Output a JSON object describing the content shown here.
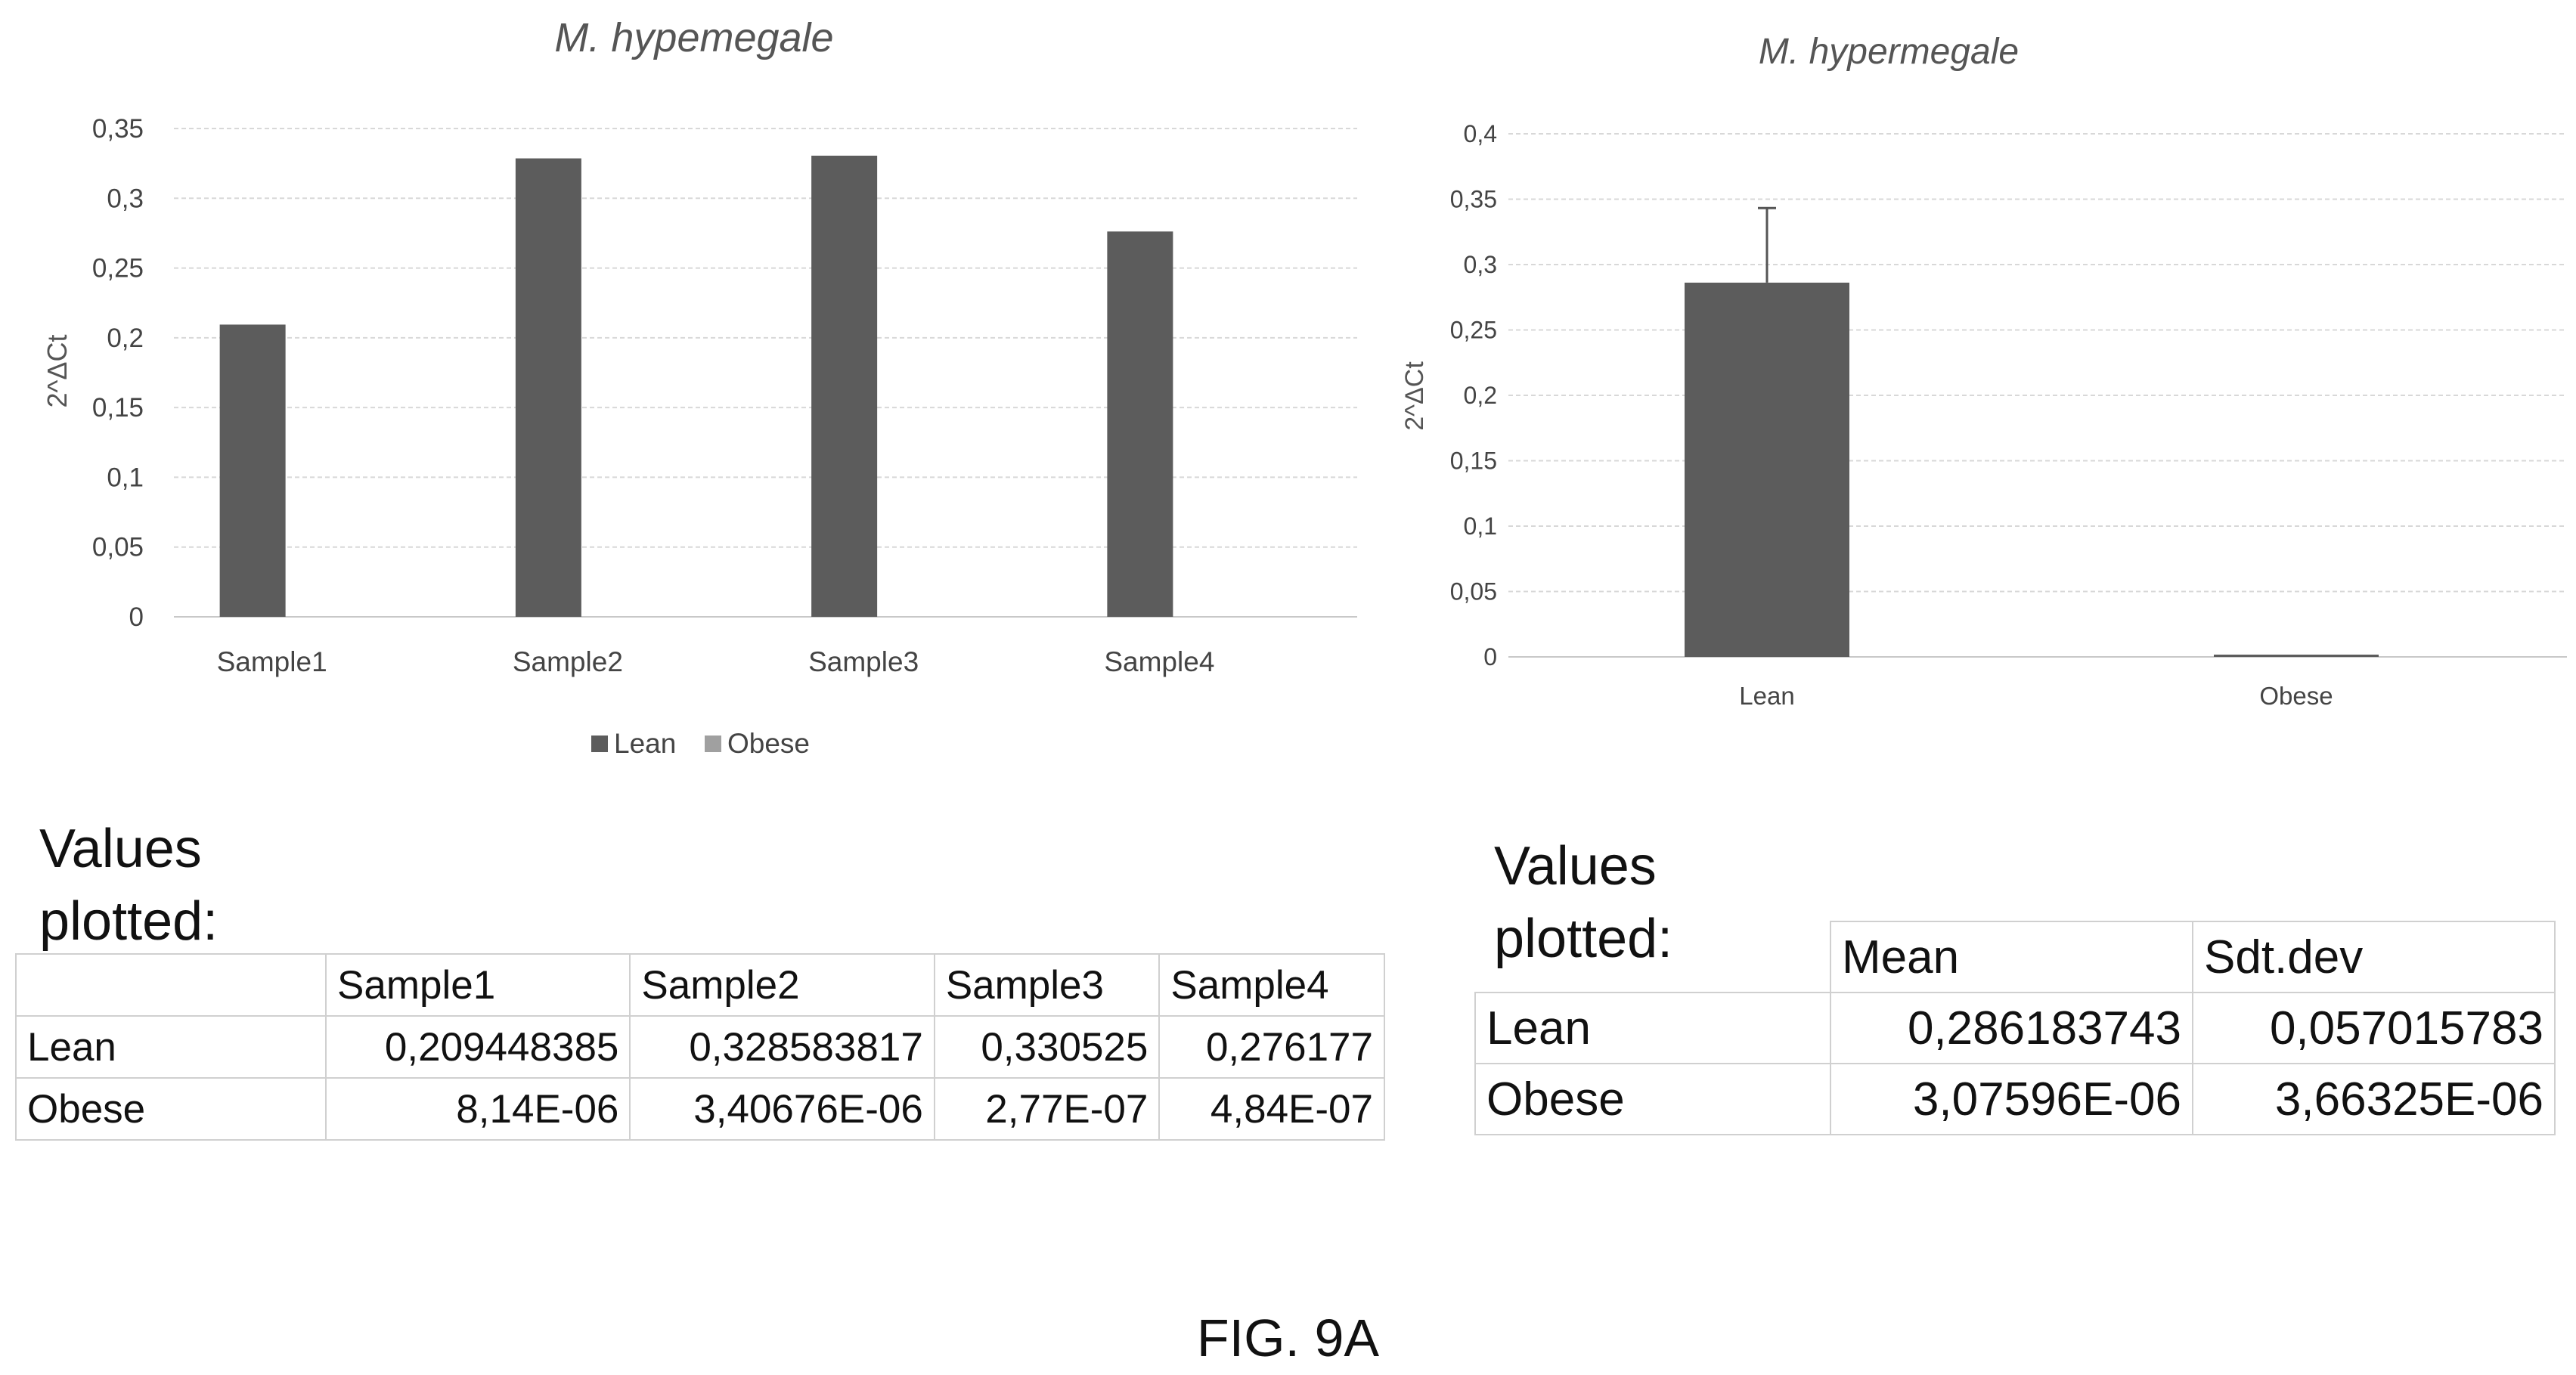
{
  "chart_data": [
    {
      "type": "bar",
      "title": "M. hypemegale",
      "ylabel": "2^ΔCt",
      "xlabel": "",
      "categories": [
        "Sample1",
        "Sample2",
        "Sample3",
        "Sample4"
      ],
      "series": [
        {
          "name": "Lean",
          "values": [
            0.209448385,
            0.328583817,
            0.330525,
            0.276177
          ],
          "color": "#5c5c5c"
        },
        {
          "name": "Obese",
          "values": [
            8.14e-06,
            3.40676e-06,
            2.77e-07,
            4.84e-07
          ],
          "color": "#a0a0a0"
        }
      ],
      "ylim": [
        0,
        0.35
      ],
      "yticks": [
        "0",
        "0,05",
        "0,1",
        "0,15",
        "0,2",
        "0,25",
        "0,3",
        "0,35"
      ],
      "grid": true,
      "legend": "bottom"
    },
    {
      "type": "bar",
      "title": "M. hypermegale",
      "ylabel": "2^ΔCt",
      "xlabel": "",
      "categories": [
        "Lean",
        "Obese"
      ],
      "values": [
        0.286183743,
        3.07596e-06
      ],
      "errors": [
        0.057015783,
        3.66325e-06
      ],
      "color": "#5c5c5c",
      "ylim": [
        0,
        0.4
      ],
      "yticks": [
        "0",
        "0,05",
        "0,1",
        "0,15",
        "0,2",
        "0,25",
        "0,3",
        "0,35",
        "0,4"
      ],
      "grid": true
    }
  ],
  "tables": {
    "left": {
      "label_line1": "Values",
      "label_line2": "plotted:",
      "header": [
        "",
        "Sample1",
        "Sample2",
        "Sample3",
        "Sample4"
      ],
      "rows": [
        [
          "Lean",
          "0,209448385",
          "0,328583817",
          "0,330525",
          "0,276177"
        ],
        [
          "Obese",
          "8,14E-06",
          "3,40676E-06",
          "2,77E-07",
          "4,84E-07"
        ]
      ]
    },
    "right": {
      "label_line1": "Values",
      "label_line2": "plotted:",
      "header": [
        "",
        "Mean",
        "Sdt.dev"
      ],
      "rows": [
        [
          "Lean",
          "0,286183743",
          "0,057015783"
        ],
        [
          "Obese",
          "3,07596E-06",
          "3,66325E-06"
        ]
      ]
    }
  },
  "figure_label": "FIG. 9A"
}
